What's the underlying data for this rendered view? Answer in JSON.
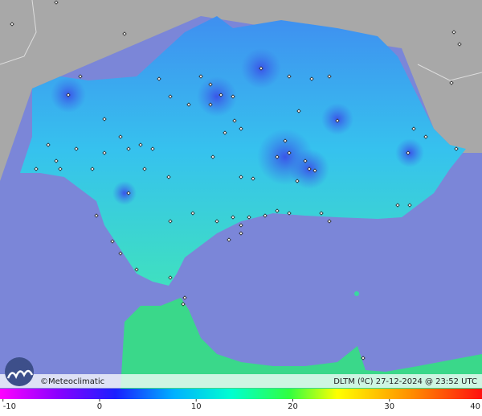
{
  "credit": "©Meteoclimatic",
  "caption": "DLTM (ºC)  27-12-2024 @ 23:52 UTC",
  "colorbar": {
    "range": [
      -10,
      40
    ],
    "ticks": [
      -10,
      0,
      10,
      20,
      30,
      40
    ]
  }
}
